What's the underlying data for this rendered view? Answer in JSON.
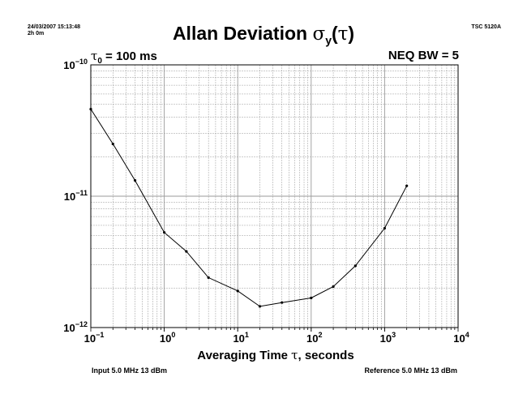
{
  "header": {
    "timestamp": "24/03/2007 15:13:48",
    "duration": "2h 0m",
    "instrument": "TSC 5120A",
    "title_text": "Allan Deviation ",
    "title_sigma": "σ",
    "title_sub": "y",
    "title_paren_open": "(",
    "title_tau": "τ",
    "title_paren_close": ")",
    "tau0_symbol": "τ",
    "tau0_sub": "0",
    "tau0_value": " = 100 ms",
    "neq_bw": "NEQ BW = 5"
  },
  "footer": {
    "input": "Input 5.0 MHz 13 dBm",
    "reference": "Reference 5.0 MHz 13 dBm"
  },
  "colors": {
    "line": "#000000",
    "grid": "#9a9a9a",
    "background": "#ffffff"
  },
  "chart_data": {
    "type": "line",
    "title": "Allan Deviation σy(τ)",
    "xlabel_prefix": "Averaging Time ",
    "xlabel_symbol": "τ",
    "xlabel_suffix": ", seconds",
    "ylabel": "",
    "xscale": "log",
    "yscale": "log",
    "xlim": [
      0.1,
      10000
    ],
    "ylim": [
      1e-12,
      1e-10
    ],
    "grid": true,
    "x_ticks": [
      {
        "base": "10",
        "exp": "−1"
      },
      {
        "base": "10",
        "exp": "0"
      },
      {
        "base": "10",
        "exp": "1"
      },
      {
        "base": "10",
        "exp": "2"
      },
      {
        "base": "10",
        "exp": "3"
      },
      {
        "base": "10",
        "exp": "4"
      }
    ],
    "y_ticks": [
      {
        "base": "10",
        "exp": "−10"
      },
      {
        "base": "10",
        "exp": "−11"
      },
      {
        "base": "10",
        "exp": "−12"
      }
    ],
    "series": [
      {
        "x": [
          0.1,
          0.2,
          0.4,
          1,
          2,
          4,
          10,
          20,
          40,
          100,
          200,
          400,
          1000,
          2000
        ],
        "y": [
          4.6e-11,
          2.5e-11,
          1.32e-11,
          5.3e-12,
          3.8e-12,
          2.4e-12,
          1.9e-12,
          1.45e-12,
          1.55e-12,
          1.68e-12,
          2.05e-12,
          2.95e-12,
          5.7e-12,
          1.2e-11
        ]
      }
    ]
  }
}
